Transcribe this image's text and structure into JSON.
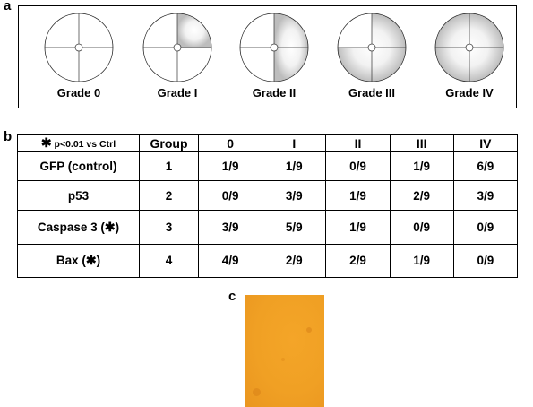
{
  "panel_a": {
    "letter": "a",
    "grades": [
      {
        "label": "Grade 0",
        "extent": "none"
      },
      {
        "label": "Grade I",
        "extent": "upper-right quadrant"
      },
      {
        "label": "Grade II",
        "extent": "right half"
      },
      {
        "label": "Grade III",
        "extent": "three quadrants"
      },
      {
        "label": "Grade IV",
        "extent": "full circle"
      }
    ]
  },
  "panel_b": {
    "letter": "b",
    "legend_symbol": "✱",
    "legend_text": "p<0.01 vs Ctrl",
    "columns": [
      "Group",
      "0",
      "I",
      "II",
      "III",
      "IV"
    ],
    "rows": [
      {
        "name": "GFP (control)",
        "mark": "",
        "group": "1",
        "values": [
          "1/9",
          "1/9",
          "0/9",
          "1/9",
          "6/9"
        ]
      },
      {
        "name": "p53",
        "mark": "",
        "group": "2",
        "values": [
          "0/9",
          "3/9",
          "1/9",
          "2/9",
          "3/9"
        ]
      },
      {
        "name": "Caspase 3 (",
        "mark": "✱",
        "suffix": ")",
        "group": "3",
        "values": [
          "3/9",
          "5/9",
          "1/9",
          "0/9",
          "0/9"
        ]
      },
      {
        "name": "Bax (",
        "mark": "✱",
        "suffix": ")",
        "group": "4",
        "values": [
          "4/9",
          "2/9",
          "2/9",
          "1/9",
          "0/9"
        ]
      }
    ]
  },
  "panel_c": {
    "letter": "c",
    "image_color": "#f0a024"
  }
}
